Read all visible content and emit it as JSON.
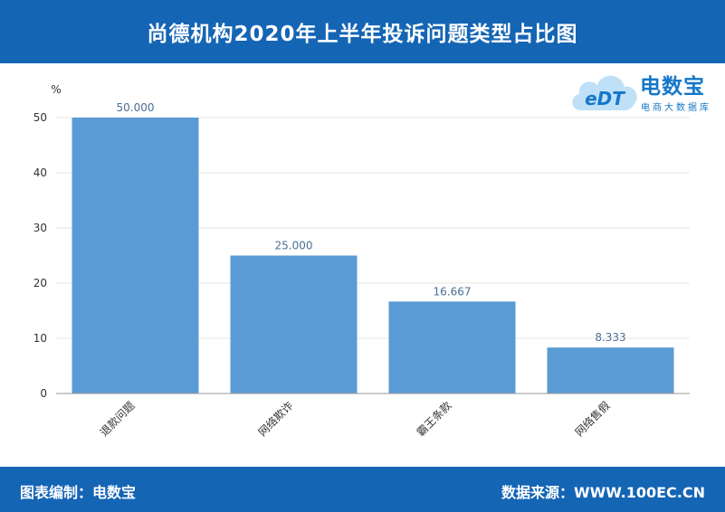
{
  "header": {
    "title": "尚德机构2020年上半年投诉问题类型占比图"
  },
  "footer": {
    "left_text": "图表编制：电数宝",
    "right_text": "数据来源：WWW.100EC.CN"
  },
  "logo": {
    "mark_text": "eDT",
    "name": "电数宝",
    "subtitle": "电商大数据库"
  },
  "colors": {
    "header_bg": "#1565b5",
    "bar": "#5b9bd5",
    "label": "#4a6f96",
    "axis_text": "#333333"
  },
  "chart_data": {
    "type": "bar",
    "title": "",
    "xlabel": "",
    "ylabel": "%",
    "categories": [
      "退款问题",
      "网络欺诈",
      "霸王条款",
      "网络售假"
    ],
    "values": [
      50.0,
      25.0,
      16.667,
      8.333
    ],
    "value_labels": [
      "50.000",
      "25.000",
      "16.667",
      "8.333"
    ],
    "ylim": [
      0,
      50
    ],
    "yticks": [
      0,
      10,
      20,
      30,
      40,
      50
    ],
    "grid": true,
    "legend": "none"
  }
}
